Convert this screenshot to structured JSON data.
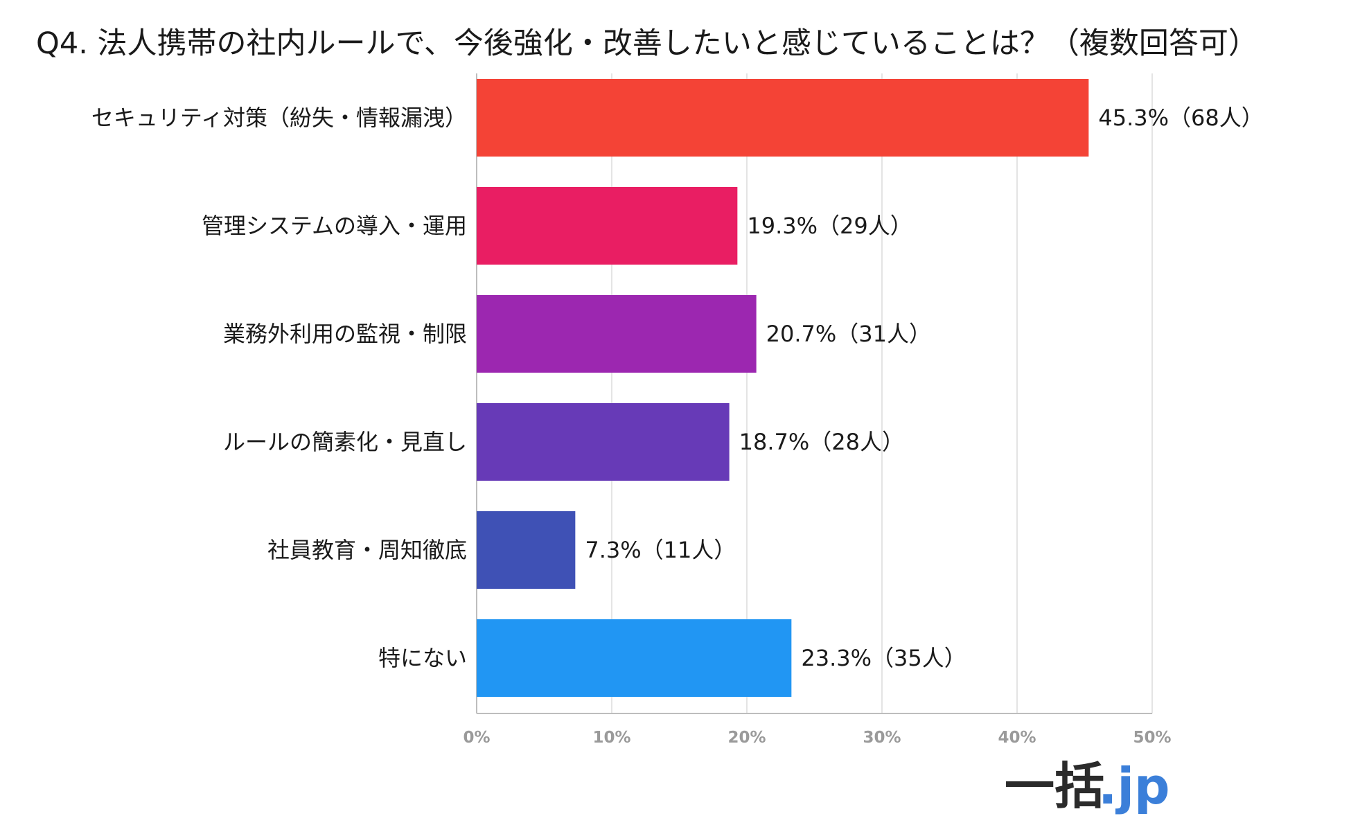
{
  "chart_data": {
    "type": "bar",
    "orientation": "horizontal",
    "title": "Q4. 法人携帯の社内ルールで、今後強化・改善したいと感じていることは？（複数回答可）",
    "categories": [
      "セキュリティ対策（紛失・情報漏洩）",
      "管理システムの導入・運用",
      "業務外利用の監視・制限",
      "ルールの簡素化・見直し",
      "社員教育・周知徹底",
      "特にない"
    ],
    "values": [
      45.3,
      19.3,
      20.7,
      18.7,
      7.3,
      23.3
    ],
    "value_labels": [
      "45.3%（68人）",
      "19.3%（29人）",
      "20.7%（31人）",
      "18.7%（28人）",
      "7.3%（11人）",
      "23.3%（35人）"
    ],
    "colors": [
      "#f44336",
      "#e91e63",
      "#9c27b0",
      "#673ab7",
      "#3f51b5",
      "#2196f3"
    ],
    "xlim": [
      0,
      50
    ],
    "x_ticks": [
      0,
      10,
      20,
      30,
      40,
      50
    ],
    "x_tick_labels": [
      "0%",
      "10%",
      "20%",
      "30%",
      "40%",
      "50%"
    ],
    "grid": true,
    "xlabel": "",
    "ylabel": ""
  },
  "logo": {
    "kanji": "一括",
    "suffix": ".jp"
  }
}
